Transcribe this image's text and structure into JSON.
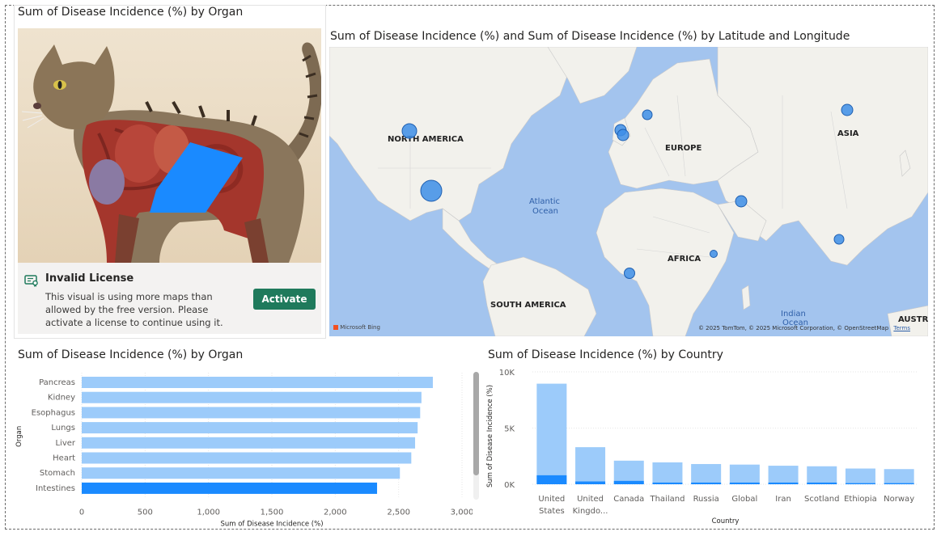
{
  "image_visual": {
    "title": "Sum of Disease Incidence (%) by Organ",
    "license": {
      "title": "Invalid License",
      "message": "This visual is using more maps than allowed by the free version. Please activate a license to continue using it.",
      "button_label": "Activate"
    }
  },
  "map_visual": {
    "title": "Sum of Disease Incidence (%) and Sum of Disease Incidence (%) by Latitude and Longitude",
    "labels": {
      "north_america": "NORTH AMERICA",
      "europe": "EUROPE",
      "asia": "ASIA",
      "africa": "AFRICA",
      "south_america": "SOUTH AMERICA",
      "australia": "AUSTRA",
      "atlantic": "Atlantic",
      "ocean1": "Ocean",
      "indian": "Indian",
      "ocean2": "Ocean"
    },
    "bing": "Microsoft Bing",
    "copyright": "© 2025 TomTom, © 2025 Microsoft Corporation, © OpenStreetMap",
    "terms": "Terms"
  },
  "colors": {
    "bar_light": "#9ccbfa",
    "bar_dark": "#1a8aff",
    "map_water": "#a3c4ee",
    "map_land": "#f2f1ec",
    "bubble": "#3d8ee8",
    "activate": "#1f7a5c"
  },
  "chart_data": [
    {
      "type": "bar",
      "orientation": "horizontal",
      "title": "Sum of Disease Incidence (%) by Organ",
      "xlabel": "Sum of Disease Incidence (%)",
      "ylabel": "Organ",
      "categories": [
        "Pancreas",
        "Kidney",
        "Esophagus",
        "Lungs",
        "Liver",
        "Heart",
        "Stomach",
        "Intestines"
      ],
      "values": [
        2770,
        2680,
        2670,
        2650,
        2630,
        2600,
        2510,
        2330
      ],
      "highlighted": "Intestines",
      "xlim": [
        0,
        3000
      ],
      "xticks": [
        "0",
        "500",
        "1,000",
        "1,500",
        "2,000",
        "2,500",
        "3,000"
      ],
      "grid": true
    },
    {
      "type": "bar",
      "orientation": "vertical",
      "title": "Sum of Disease Incidence (%) by Country",
      "xlabel": "Country",
      "ylabel": "Sum of Disease Incidence (%)",
      "categories": [
        "United States",
        "United Kingdo...",
        "Canada",
        "Thailand",
        "Russia",
        "Global",
        "Iran",
        "Scotland",
        "Ethiopia",
        "Norway"
      ],
      "series": [
        {
          "values": [
            8950,
            3300,
            2100,
            1950,
            1800,
            1750,
            1650,
            1600,
            1400,
            1350
          ]
        },
        {
          "values": [
            800,
            250,
            300,
            150,
            150,
            150,
            150,
            150,
            100,
            100
          ]
        }
      ],
      "ylim": [
        0,
        10000
      ],
      "yticks": [
        "0K",
        "5K",
        "10K"
      ],
      "grid": true
    }
  ]
}
